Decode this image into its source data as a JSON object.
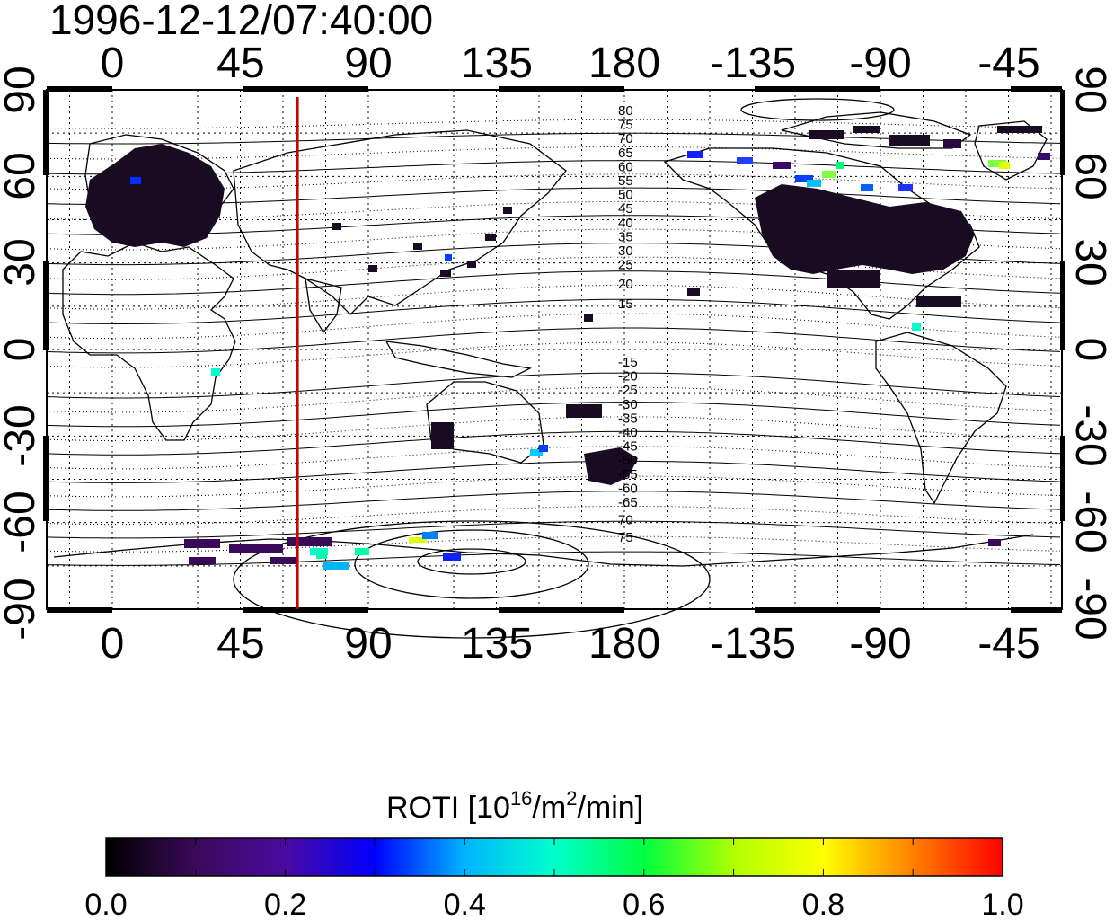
{
  "timestamp": "1996-12-12/07:40:00",
  "map": {
    "lon_ticks": [
      "0",
      "45",
      "90",
      "135",
      "180",
      "-135",
      "-90",
      "-45"
    ],
    "lat_ticks_left": [
      "90",
      "60",
      "30",
      "0",
      "-30",
      "-60",
      "-90"
    ],
    "lat_ticks_right": [
      "90",
      "60",
      "30",
      "0",
      "-30",
      "-60",
      "-90"
    ],
    "contour_labels_north": [
      "80",
      "75",
      "70",
      "65",
      "60",
      "55",
      "50",
      "45",
      "40",
      "35",
      "30",
      "25",
      "20",
      "15"
    ],
    "contour_labels_south": [
      "-15",
      "-20",
      "-25",
      "-30",
      "-35",
      "-40",
      "-45",
      "-50",
      "-55",
      "-60",
      "-65",
      "70",
      "75"
    ],
    "marker_line_longitude": 65,
    "marker_color": "#cc0000"
  },
  "colorbar": {
    "label_main": "ROTI  [10",
    "label_sup1": "16",
    "label_mid": "/m",
    "label_sup2": "2",
    "label_end": "/min]",
    "ticks": [
      "0.0",
      "0.2",
      "0.4",
      "0.6",
      "0.8",
      "1.0"
    ],
    "range": [
      0.0,
      1.0
    ],
    "colors": [
      "#000000",
      "#3a0a5a",
      "#4a0aa0",
      "#0000ff",
      "#00b4ff",
      "#00ffcc",
      "#00ff40",
      "#b0ff00",
      "#ffff00",
      "#ff8000",
      "#ff0000"
    ]
  }
}
